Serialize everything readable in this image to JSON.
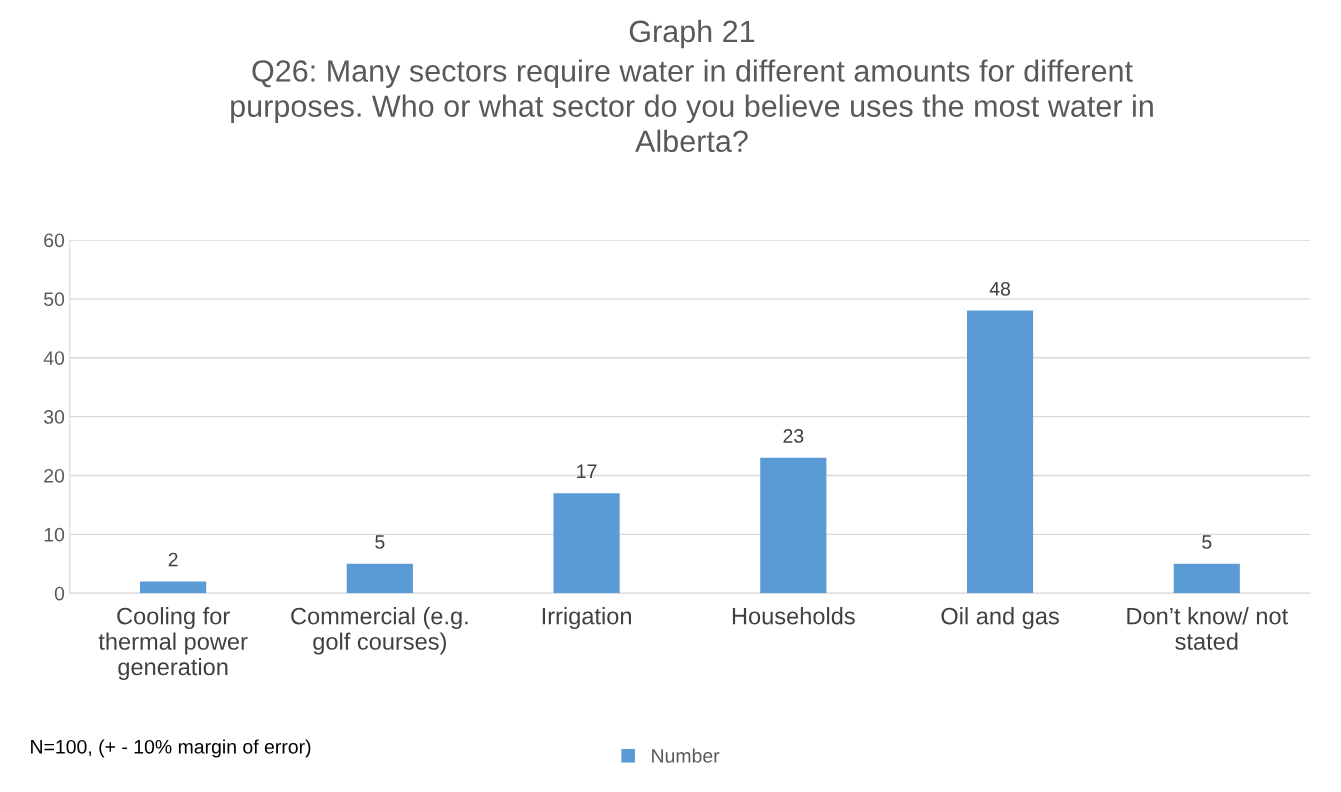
{
  "chart_data": {
    "type": "bar",
    "title": "Graph 21",
    "subtitle": "Q26: Many sectors require water in different amounts for different\npurposes. Who or what sector do you believe uses the most water in\nAlberta?",
    "categories": [
      "Cooling for\nthermal power\ngeneration",
      "Commercial (e.g.\ngolf courses)",
      "Irrigation",
      "Households",
      "Oil and gas",
      "Don’t know/ not\nstated"
    ],
    "series": [
      {
        "name": "Number",
        "color": "#5b9bd5",
        "values": [
          2,
          5,
          17,
          23,
          48,
          5
        ]
      }
    ],
    "ylim": [
      0,
      60
    ],
    "yticks": [
      0,
      10,
      20,
      30,
      40,
      50,
      60
    ],
    "grid": "y",
    "legend": "bottom",
    "data_labels": true,
    "annotations": [
      "N=100, (+ - 10% margin of error)"
    ]
  }
}
